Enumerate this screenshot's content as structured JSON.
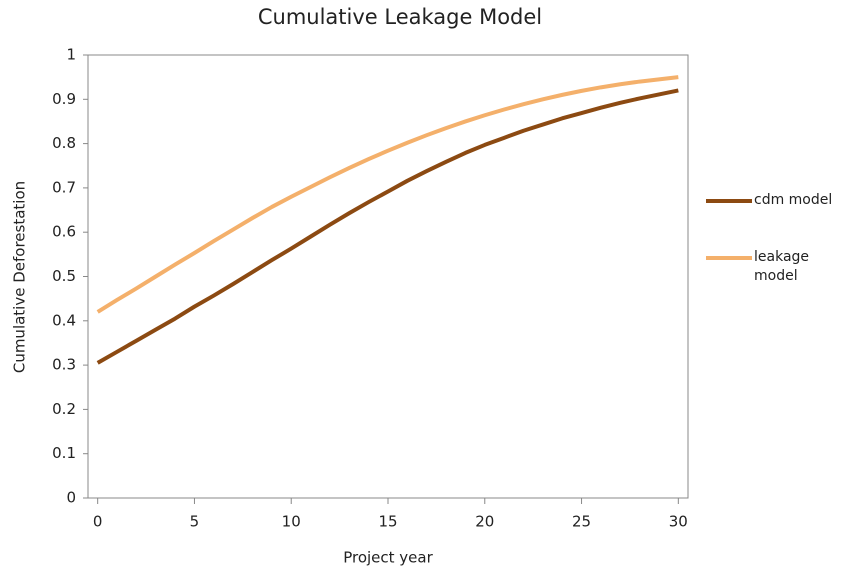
{
  "chart_data": {
    "type": "line",
    "title": "Cumulative Leakage Model",
    "x_label": "Project year",
    "y_label": "Cumulative Deforestation",
    "x": [
      0,
      1,
      2,
      3,
      4,
      5,
      6,
      7,
      8,
      9,
      10,
      11,
      12,
      13,
      14,
      15,
      16,
      17,
      18,
      19,
      20,
      21,
      22,
      23,
      24,
      25,
      26,
      27,
      28,
      29,
      30
    ],
    "series": [
      {
        "name": "cdm model",
        "color": "#8c4a12",
        "values": [
          0.305,
          0.33,
          0.355,
          0.38,
          0.405,
          0.432,
          0.457,
          0.483,
          0.51,
          0.537,
          0.563,
          0.59,
          0.617,
          0.643,
          0.668,
          0.692,
          0.716,
          0.738,
          0.759,
          0.779,
          0.797,
          0.813,
          0.829,
          0.843,
          0.857,
          0.869,
          0.881,
          0.892,
          0.902,
          0.911,
          0.92
        ]
      },
      {
        "name": "leakage model",
        "color": "#f4b06b",
        "values": [
          0.42,
          0.447,
          0.473,
          0.5,
          0.527,
          0.553,
          0.58,
          0.606,
          0.632,
          0.657,
          0.68,
          0.702,
          0.724,
          0.745,
          0.765,
          0.784,
          0.802,
          0.819,
          0.835,
          0.85,
          0.864,
          0.877,
          0.889,
          0.9,
          0.91,
          0.919,
          0.927,
          0.934,
          0.94,
          0.945,
          0.95
        ]
      }
    ],
    "xlim": [
      -0.5,
      30.5
    ],
    "xticks": [
      0,
      5,
      10,
      15,
      20,
      25,
      30
    ],
    "ylim": [
      0,
      1
    ],
    "yticks": [
      0,
      0.1,
      0.2,
      0.3,
      0.4,
      0.5,
      0.6,
      0.7,
      0.8,
      0.9,
      1
    ],
    "grid": false,
    "legend": "right"
  }
}
